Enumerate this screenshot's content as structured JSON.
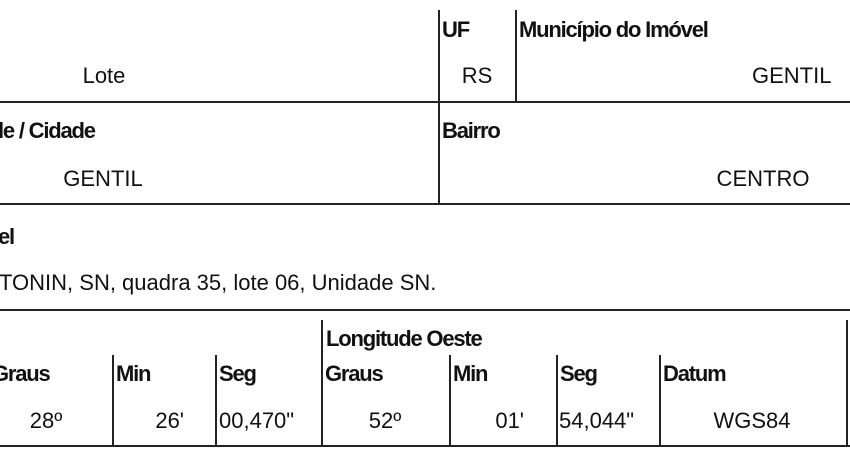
{
  "row1": {
    "lote_value": "Lote",
    "uf_label": "UF",
    "uf_value": "RS",
    "municipio_label": "Município do Imóvel",
    "municipio_value": "GENTIL"
  },
  "row2": {
    "cidade_label": "le / Cidade",
    "cidade_value": "GENTIL",
    "bairro_label": "Bairro",
    "bairro_value": "CENTRO"
  },
  "row3": {
    "endereco_label": "el",
    "endereco_value": "TONIN, SN, quadra 35, lote 06, Unidade SN."
  },
  "coords": {
    "longitude_label": "Longitude Oeste",
    "headers": [
      "Graus",
      "Min",
      "Seg",
      "Graus",
      "Min",
      "Seg",
      "Datum"
    ],
    "values": [
      "28º",
      "26'",
      "00,470\"",
      "52º",
      "01'",
      "54,044\"",
      "WGS84"
    ]
  }
}
